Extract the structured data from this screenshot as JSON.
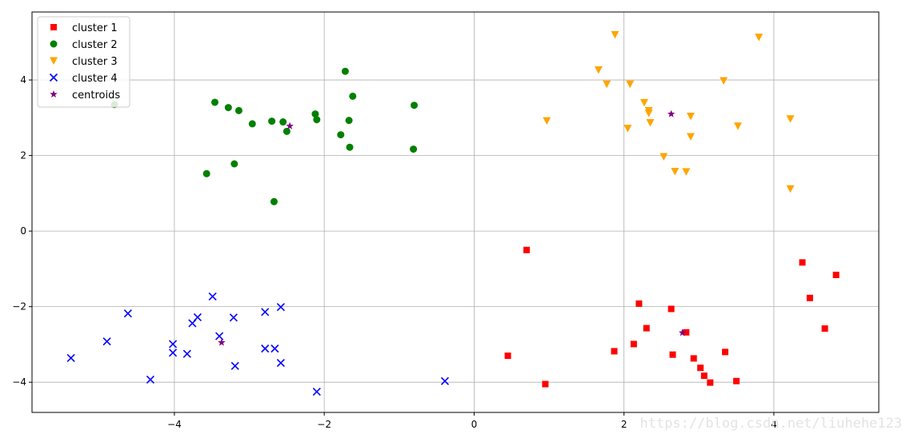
{
  "chart_data": {
    "type": "scatter",
    "title": "",
    "xlabel": "",
    "ylabel": "",
    "xlim": [
      -5.9,
      5.4
    ],
    "ylim": [
      -4.8,
      5.8
    ],
    "xticks": [
      -4,
      -2,
      0,
      2,
      4
    ],
    "yticks": [
      -4,
      -2,
      0,
      2,
      4
    ],
    "grid": true,
    "legend_position": "top-left",
    "series": [
      {
        "name": "cluster 1",
        "marker": "square",
        "color": "#ff0000",
        "points": [
          [
            0.45,
            -3.3
          ],
          [
            0.7,
            -0.5
          ],
          [
            0.95,
            -4.05
          ],
          [
            1.87,
            -3.18
          ],
          [
            2.13,
            -2.99
          ],
          [
            2.2,
            -1.92
          ],
          [
            2.3,
            -2.57
          ],
          [
            2.63,
            -2.06
          ],
          [
            2.65,
            -3.27
          ],
          [
            2.83,
            -2.68
          ],
          [
            2.93,
            -3.37
          ],
          [
            3.02,
            -3.62
          ],
          [
            3.07,
            -3.83
          ],
          [
            3.15,
            -4.01
          ],
          [
            3.35,
            -3.2
          ],
          [
            3.5,
            -3.97
          ],
          [
            4.38,
            -0.83
          ],
          [
            4.48,
            -1.77
          ],
          [
            4.68,
            -2.58
          ],
          [
            4.83,
            -1.16
          ]
        ]
      },
      {
        "name": "cluster 2",
        "marker": "circle",
        "color": "#008000",
        "points": [
          [
            -4.8,
            3.35
          ],
          [
            -3.57,
            1.52
          ],
          [
            -3.46,
            3.41
          ],
          [
            -3.28,
            3.27
          ],
          [
            -3.2,
            1.78
          ],
          [
            -3.14,
            3.19
          ],
          [
            -2.96,
            2.84
          ],
          [
            -2.7,
            2.91
          ],
          [
            -2.67,
            0.78
          ],
          [
            -2.55,
            2.89
          ],
          [
            -2.5,
            2.64
          ],
          [
            -2.12,
            3.1
          ],
          [
            -2.1,
            2.95
          ],
          [
            -1.78,
            2.55
          ],
          [
            -1.72,
            4.23
          ],
          [
            -1.67,
            2.93
          ],
          [
            -1.66,
            2.22
          ],
          [
            -1.62,
            3.57
          ],
          [
            -0.8,
            3.33
          ],
          [
            -0.81,
            2.17
          ]
        ]
      },
      {
        "name": "cluster 3",
        "marker": "triangle_down",
        "color": "#ffa500",
        "points": [
          [
            0.97,
            2.92
          ],
          [
            1.66,
            4.27
          ],
          [
            1.77,
            3.89
          ],
          [
            1.88,
            5.2
          ],
          [
            2.05,
            2.72
          ],
          [
            2.08,
            3.89
          ],
          [
            2.27,
            3.4
          ],
          [
            2.33,
            3.19
          ],
          [
            2.33,
            3.12
          ],
          [
            2.35,
            2.87
          ],
          [
            2.53,
            1.97
          ],
          [
            2.68,
            1.58
          ],
          [
            2.83,
            1.57
          ],
          [
            2.89,
            3.04
          ],
          [
            2.89,
            2.5
          ],
          [
            3.33,
            3.98
          ],
          [
            3.52,
            2.78
          ],
          [
            3.8,
            5.13
          ],
          [
            4.22,
            1.12
          ],
          [
            4.22,
            2.97
          ]
        ]
      },
      {
        "name": "cluster 4",
        "marker": "x",
        "color": "#0000ff",
        "points": [
          [
            -5.38,
            -3.36
          ],
          [
            -4.9,
            -2.92
          ],
          [
            -4.62,
            -2.18
          ],
          [
            -4.32,
            -3.93
          ],
          [
            -4.02,
            -2.99
          ],
          [
            -4.02,
            -3.22
          ],
          [
            -3.83,
            -3.25
          ],
          [
            -3.76,
            -2.44
          ],
          [
            -3.69,
            -2.28
          ],
          [
            -3.49,
            -1.73
          ],
          [
            -3.4,
            -2.78
          ],
          [
            -3.21,
            -2.29
          ],
          [
            -3.19,
            -3.57
          ],
          [
            -2.79,
            -2.14
          ],
          [
            -2.79,
            -3.11
          ],
          [
            -2.66,
            -3.11
          ],
          [
            -2.58,
            -2.01
          ],
          [
            -2.58,
            -3.49
          ],
          [
            -2.1,
            -4.25
          ],
          [
            -0.39,
            -3.97
          ]
        ]
      },
      {
        "name": "centroids",
        "marker": "star",
        "color": "#800080",
        "points": [
          [
            2.78,
            -2.69
          ],
          [
            -2.46,
            2.78
          ],
          [
            2.63,
            3.1
          ],
          [
            -3.37,
            -2.95
          ]
        ]
      }
    ]
  },
  "watermark": "https://blog.csdn.net/liuhehe123"
}
